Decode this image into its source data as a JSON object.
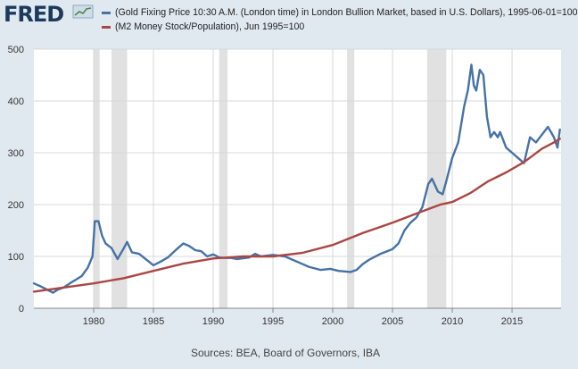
{
  "brand": {
    "name": "FRED"
  },
  "chart_data": {
    "type": "line",
    "legend": [
      {
        "name": "(Gold Fixing Price 10:30 A.M. (London time) in London Bullion Market, based in U.S. Dollars), 1995-06-01=100",
        "color": "#4572a7"
      },
      {
        "name": "(M2 Money Stock/Population), Jun 1995=100",
        "color": "#aa4643"
      }
    ],
    "xlim": [
      1975.0,
      2019.1
    ],
    "ylim": [
      0,
      500
    ],
    "x_ticks": [
      1980,
      1985,
      1990,
      1995,
      2000,
      2005,
      2010,
      2015
    ],
    "y_ticks": [
      0,
      100,
      200,
      300,
      400,
      500
    ],
    "grid": true,
    "recessions": [
      [
        1980.0,
        1980.5
      ],
      [
        1981.5,
        1982.8
      ],
      [
        1990.5,
        1991.2
      ],
      [
        2001.2,
        2001.8
      ],
      [
        2007.9,
        2009.5
      ]
    ],
    "series": [
      {
        "name": "(Gold Fixing Price 10:30 A.M. (London time) in London Bullion Market, based in U.S. Dollars), 1995-06-01=100",
        "color": "#4572a7",
        "x": [
          1975.0,
          1975.5,
          1976.0,
          1976.6,
          1977.0,
          1977.5,
          1978.0,
          1978.5,
          1979.0,
          1979.5,
          1979.9,
          1980.1,
          1980.4,
          1980.7,
          1981.0,
          1981.5,
          1982.0,
          1982.5,
          1982.8,
          1983.2,
          1983.8,
          1984.5,
          1985.0,
          1985.6,
          1986.2,
          1987.0,
          1987.5,
          1988.0,
          1988.5,
          1989.0,
          1989.5,
          1990.0,
          1990.5,
          1991.0,
          1991.5,
          1992.0,
          1993.0,
          1993.5,
          1994.0,
          1995.0,
          1996.0,
          1997.0,
          1997.5,
          1998.0,
          1999.0,
          1999.8,
          2000.5,
          2001.0,
          2001.5,
          2002.0,
          2002.5,
          2003.0,
          2004.0,
          2005.0,
          2005.5,
          2006.0,
          2006.5,
          2007.0,
          2007.5,
          2008.0,
          2008.3,
          2008.8,
          2009.2,
          2009.5,
          2010.0,
          2010.5,
          2011.0,
          2011.3,
          2011.6,
          2011.8,
          2012.0,
          2012.3,
          2012.6,
          2012.9,
          2013.2,
          2013.5,
          2013.8,
          2014.0,
          2014.5,
          2015.0,
          2015.5,
          2016.0,
          2016.5,
          2017.0,
          2017.5,
          2018.0,
          2018.5,
          2018.8,
          2019.0
        ],
        "values": [
          48,
          43,
          37,
          30,
          36,
          40,
          48,
          55,
          62,
          78,
          100,
          168,
          168,
          140,
          125,
          116,
          95,
          115,
          128,
          108,
          105,
          92,
          83,
          90,
          98,
          115,
          125,
          120,
          112,
          110,
          100,
          104,
          98,
          97,
          97,
          95,
          98,
          105,
          100,
          103,
          100,
          90,
          85,
          80,
          74,
          76,
          72,
          71,
          70,
          74,
          85,
          93,
          105,
          114,
          125,
          150,
          165,
          175,
          195,
          240,
          250,
          225,
          220,
          245,
          290,
          320,
          390,
          420,
          470,
          430,
          420,
          460,
          450,
          370,
          330,
          340,
          330,
          340,
          310,
          300,
          290,
          280,
          330,
          320,
          335,
          350,
          330,
          310,
          345
        ]
      },
      {
        "name": "(M2 Money Stock/Population), Jun 1995=100",
        "color": "#aa4643",
        "x": [
          1975.0,
          1977.5,
          1980.0,
          1982.5,
          1985.0,
          1987.5,
          1990.0,
          1992.5,
          1995.0,
          1997.5,
          2000.0,
          2002.5,
          2005.0,
          2007.5,
          2009.0,
          2010.0,
          2011.5,
          2013.0,
          2014.5,
          2016.0,
          2017.5,
          2018.5,
          2019.0
        ],
        "values": [
          32,
          40,
          48,
          58,
          72,
          86,
          96,
          100,
          100,
          107,
          122,
          145,
          165,
          187,
          200,
          205,
          222,
          245,
          262,
          282,
          308,
          320,
          327
        ]
      }
    ],
    "source": "Sources: BEA, Board of Governors, IBA"
  }
}
